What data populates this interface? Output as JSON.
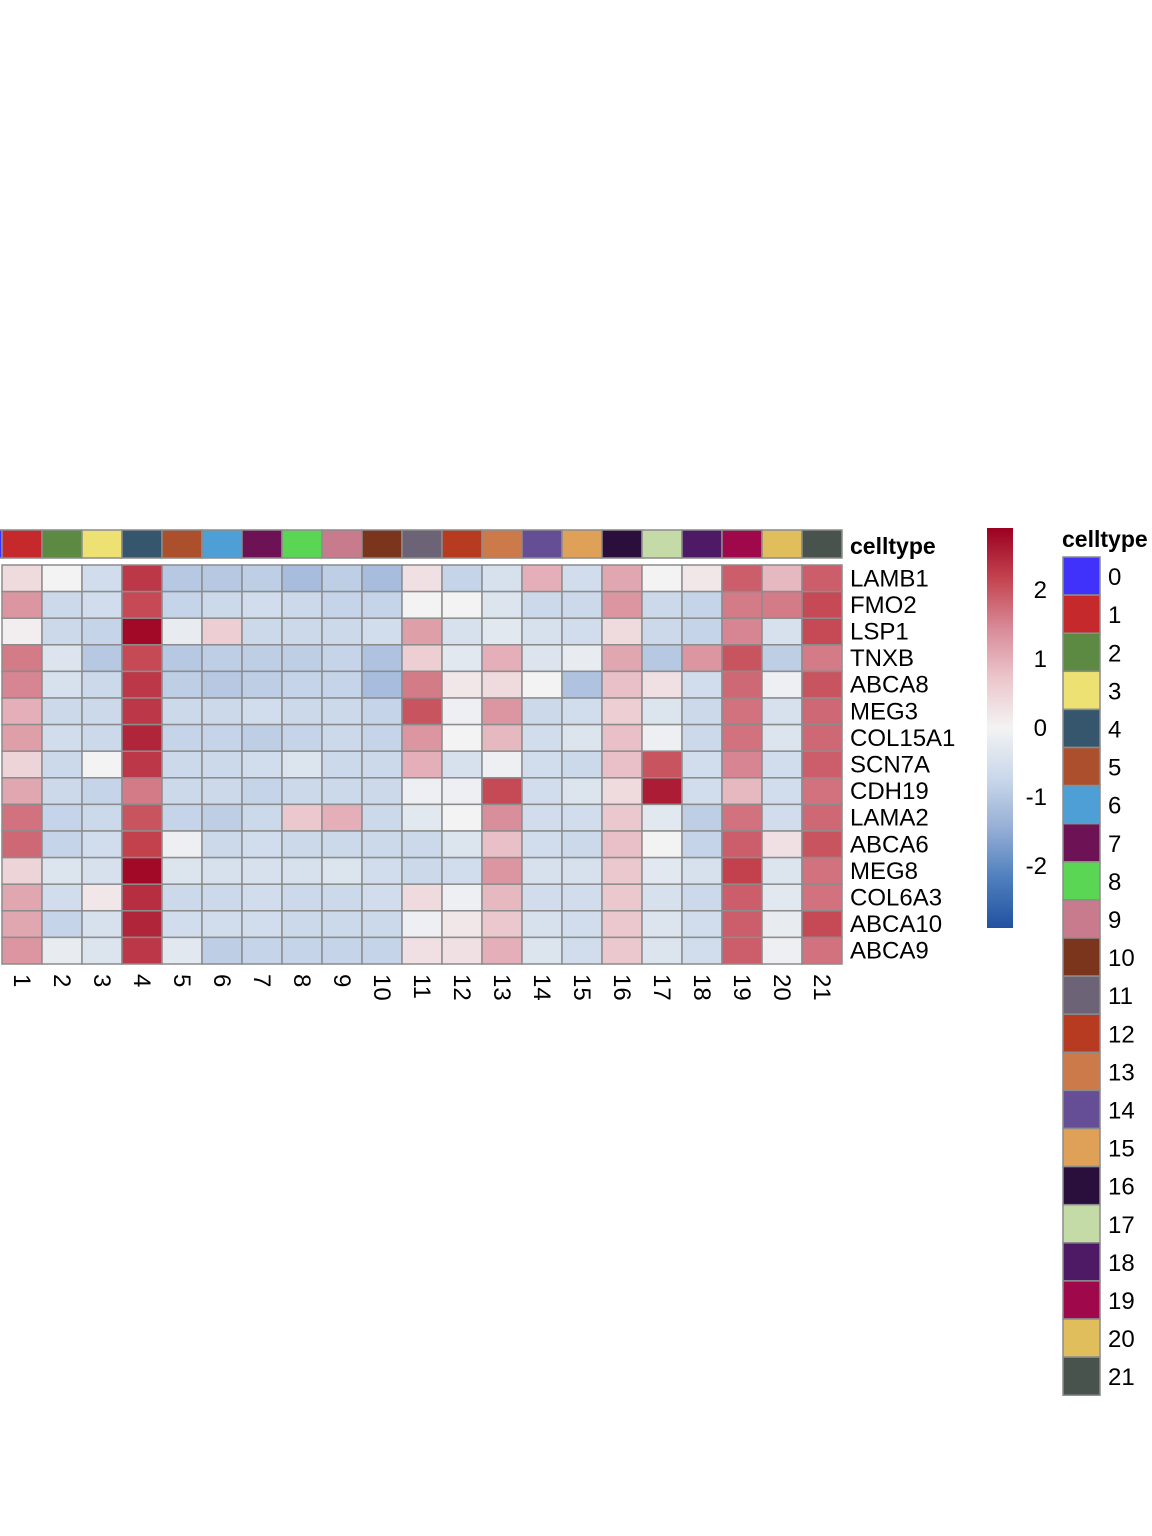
{
  "chart_data": {
    "type": "heatmap",
    "title": "",
    "annotation_title": "celltype",
    "legend_title": "celltype",
    "columns": [
      "1",
      "2",
      "3",
      "4",
      "5",
      "6",
      "7",
      "8",
      "9",
      "10",
      "11",
      "12",
      "13",
      "14",
      "15",
      "16",
      "17",
      "18",
      "19",
      "20",
      "21"
    ],
    "rows": [
      "LAMB1",
      "FMO2",
      "LSP1",
      "TNXB",
      "ABCA8",
      "MEG3",
      "COL15A1",
      "SCN7A",
      "CDH19",
      "LAMA2",
      "ABCA6",
      "MEG8",
      "COL6A3",
      "ABCA10",
      "ABCA9"
    ],
    "values": [
      [
        0.4,
        0.0,
        -0.6,
        2.3,
        -1.0,
        -1.0,
        -0.9,
        -1.2,
        -0.9,
        -1.2,
        0.3,
        -0.8,
        -0.5,
        1.0,
        -0.6,
        1.1,
        0.0,
        0.2,
        1.9,
        0.9,
        1.9
      ],
      [
        1.3,
        -0.7,
        -0.6,
        2.1,
        -0.8,
        -0.7,
        -0.6,
        -0.7,
        -0.8,
        -0.8,
        0.0,
        0.0,
        -0.4,
        -0.7,
        -0.7,
        1.3,
        -0.7,
        -0.8,
        1.6,
        1.6,
        2.1
      ],
      [
        0.1,
        -0.7,
        -0.8,
        2.8,
        -0.2,
        0.6,
        -0.7,
        -0.7,
        -0.7,
        -0.6,
        1.2,
        -0.5,
        -0.3,
        -0.5,
        -0.6,
        0.4,
        -0.7,
        -0.8,
        1.5,
        -0.5,
        2.1
      ],
      [
        1.6,
        -0.4,
        -1.0,
        2.1,
        -1.0,
        -0.9,
        -0.9,
        -0.9,
        -0.8,
        -1.1,
        0.6,
        -0.3,
        1.0,
        -0.4,
        -0.2,
        1.1,
        -1.0,
        1.3,
        2.0,
        -0.9,
        1.6
      ],
      [
        1.5,
        -0.5,
        -0.7,
        2.3,
        -0.9,
        -1.0,
        -0.9,
        -0.8,
        -0.8,
        -1.2,
        1.6,
        0.2,
        0.4,
        0.0,
        -1.1,
        0.8,
        0.3,
        -0.6,
        1.8,
        -0.1,
        2.0
      ],
      [
        1.0,
        -0.7,
        -0.7,
        2.3,
        -0.7,
        -0.7,
        -0.6,
        -0.7,
        -0.7,
        -0.8,
        2.0,
        -0.1,
        1.3,
        -0.7,
        -0.6,
        0.6,
        -0.4,
        -0.7,
        1.7,
        -0.5,
        1.8
      ],
      [
        1.2,
        -0.6,
        -0.7,
        2.5,
        -0.8,
        -0.8,
        -0.9,
        -0.8,
        -0.7,
        -0.8,
        1.3,
        0.0,
        0.9,
        -0.6,
        -0.4,
        0.8,
        -0.1,
        -0.7,
        1.7,
        -0.4,
        1.8
      ],
      [
        0.5,
        -0.7,
        0.0,
        2.3,
        -0.7,
        -0.7,
        -0.6,
        -0.4,
        -0.7,
        -0.7,
        1.0,
        -0.5,
        -0.1,
        -0.6,
        -0.7,
        0.8,
        2.0,
        -0.6,
        1.5,
        -0.6,
        1.9
      ],
      [
        1.1,
        -0.7,
        -0.8,
        1.6,
        -0.7,
        -0.7,
        -0.8,
        -0.7,
        -0.7,
        -0.7,
        -0.1,
        -0.1,
        2.1,
        -0.6,
        -0.4,
        0.4,
        2.6,
        -0.6,
        0.9,
        -0.6,
        1.7
      ],
      [
        1.7,
        -0.8,
        -0.7,
        2.0,
        -0.8,
        -0.9,
        -0.7,
        0.7,
        1.0,
        -0.7,
        -0.3,
        0.0,
        1.4,
        -0.6,
        -0.6,
        0.7,
        -0.3,
        -0.9,
        1.7,
        -0.6,
        1.8
      ],
      [
        1.8,
        -0.8,
        -0.6,
        2.2,
        -0.1,
        -0.7,
        -0.6,
        -0.7,
        -0.7,
        -0.7,
        -0.7,
        -0.4,
        0.8,
        -0.6,
        -0.7,
        0.8,
        0.0,
        -0.8,
        1.9,
        0.3,
        2.0
      ],
      [
        0.5,
        -0.4,
        -0.5,
        2.8,
        -0.4,
        -0.5,
        -0.5,
        -0.5,
        -0.4,
        -0.6,
        -0.7,
        -0.6,
        1.3,
        -0.5,
        -0.5,
        0.7,
        -0.3,
        -0.5,
        2.2,
        -0.4,
        1.7
      ],
      [
        1.1,
        -0.6,
        0.2,
        2.4,
        -0.7,
        -0.7,
        -0.6,
        -0.7,
        -0.7,
        -0.6,
        0.4,
        -0.1,
        0.9,
        -0.6,
        -0.6,
        0.7,
        -0.5,
        -0.7,
        1.9,
        -0.3,
        1.7
      ],
      [
        1.1,
        -0.8,
        -0.5,
        2.5,
        -0.6,
        -0.6,
        -0.6,
        -0.7,
        -0.7,
        -0.7,
        -0.1,
        0.2,
        0.7,
        -0.5,
        -0.6,
        0.7,
        -0.4,
        -0.6,
        1.9,
        -0.2,
        2.1
      ],
      [
        1.3,
        -0.2,
        -0.4,
        2.3,
        -0.3,
        -0.9,
        -0.8,
        -0.8,
        -0.8,
        -0.8,
        0.3,
        0.3,
        1.0,
        -0.4,
        -0.6,
        0.7,
        -0.4,
        -0.6,
        1.9,
        -0.1,
        1.7
      ]
    ],
    "color_scale": {
      "range": [
        -2.9,
        2.9
      ],
      "ticks": [
        2,
        1,
        0,
        -1,
        -2
      ],
      "tick_labels": [
        "2",
        "1",
        "0",
        "-1",
        "-2"
      ],
      "stops": [
        "#2151a0",
        "#4f7fbd",
        "#96afd6",
        "#cad8ea",
        "#f3f3f3",
        "#ebc6cc",
        "#d88a97",
        "#c3434f",
        "#9b0021"
      ]
    },
    "legend": [
      {
        "label": "0",
        "color": "#4132fb"
      },
      {
        "label": "1",
        "color": "#c5292b"
      },
      {
        "label": "2",
        "color": "#5d8a43"
      },
      {
        "label": "3",
        "color": "#ede173"
      },
      {
        "label": "4",
        "color": "#35566d"
      },
      {
        "label": "5",
        "color": "#ab4f2c"
      },
      {
        "label": "6",
        "color": "#4e9fd5"
      },
      {
        "label": "7",
        "color": "#6d1255"
      },
      {
        "label": "8",
        "color": "#5bd654"
      },
      {
        "label": "9",
        "color": "#c97b8e"
      },
      {
        "label": "10",
        "color": "#7c351d"
      },
      {
        "label": "11",
        "color": "#6d6377"
      },
      {
        "label": "12",
        "color": "#b73b20"
      },
      {
        "label": "13",
        "color": "#cc7a4a"
      },
      {
        "label": "14",
        "color": "#664e96"
      },
      {
        "label": "15",
        "color": "#dfa058"
      },
      {
        "label": "16",
        "color": "#2a0f3d"
      },
      {
        "label": "17",
        "color": "#c4dba8"
      },
      {
        "label": "18",
        "color": "#4f1a65"
      },
      {
        "label": "19",
        "color": "#9f084b"
      },
      {
        "label": "20",
        "color": "#e1be5c"
      },
      {
        "label": "21",
        "color": "#47534c"
      }
    ],
    "column_celltype_colors": [
      "#c5292b",
      "#5d8a43",
      "#ede173",
      "#35566d",
      "#ab4f2c",
      "#4e9fd5",
      "#6d1255",
      "#5bd654",
      "#c97b8e",
      "#7c351d",
      "#6d6377",
      "#b73b20",
      "#cc7a4a",
      "#664e96",
      "#dfa058",
      "#2a0f3d",
      "#c4dba8",
      "#4f1a65",
      "#9f084b",
      "#e1be5c",
      "#47534c"
    ]
  }
}
